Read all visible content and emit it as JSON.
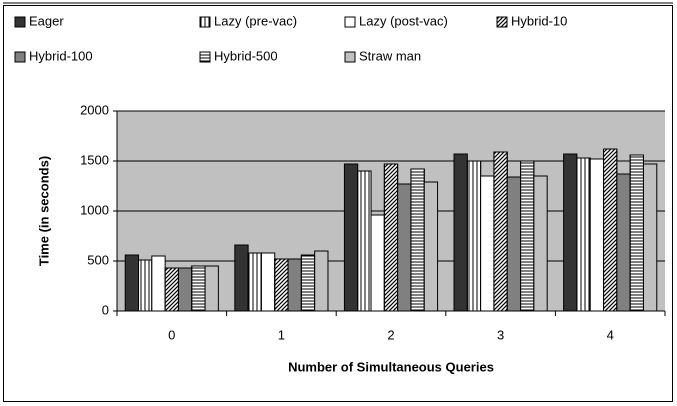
{
  "chart_data": {
    "type": "bar",
    "xlabel": "Number of Simultaneous Queries",
    "ylabel": "Time (in seconds)",
    "categories": [
      "0",
      "1",
      "2",
      "3",
      "4"
    ],
    "series": [
      {
        "name": "Eager",
        "color": "#333333",
        "hatch": "none",
        "values": [
          560,
          660,
          1470,
          1570,
          1570
        ]
      },
      {
        "name": "Lazy (pre-vac)",
        "color": "#ffffff",
        "hatch": "vertical",
        "values": [
          510,
          580,
          1400,
          1500,
          1530
        ]
      },
      {
        "name": "Lazy (post-vac)",
        "color": "#ffffff",
        "hatch": "none",
        "values": [
          550,
          580,
          960,
          1350,
          1520
        ]
      },
      {
        "name": "Hybrid-10",
        "color": "#ffffff",
        "hatch": "diagonal",
        "values": [
          430,
          520,
          1470,
          1590,
          1620
        ]
      },
      {
        "name": "Hybrid-100",
        "color": "#808080",
        "hatch": "none",
        "values": [
          430,
          520,
          1270,
          1340,
          1370
        ]
      },
      {
        "name": "Hybrid-500",
        "color": "#ffffff",
        "hatch": "horizontal",
        "values": [
          450,
          560,
          1420,
          1500,
          1560
        ]
      },
      {
        "name": "Straw man",
        "color": "#c0c0c0",
        "hatch": "none",
        "values": [
          450,
          600,
          1290,
          1350,
          1470
        ]
      }
    ],
    "ylim": [
      0,
      2000
    ],
    "yticks": [
      0,
      500,
      1000,
      1500,
      2000
    ],
    "grid": true,
    "plot_background": "#c0c0c0",
    "legend": "top"
  }
}
